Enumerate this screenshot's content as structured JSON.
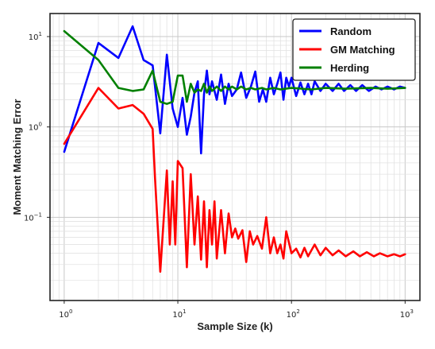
{
  "chart_data": {
    "type": "line",
    "xscale": "log",
    "yscale": "log",
    "xlim": [
      0.75,
      1350
    ],
    "ylim": [
      0.012,
      18
    ],
    "xlabel": "Sample Size (k)",
    "ylabel": "Moment Matching Error",
    "x_tick_values": [
      1,
      10,
      100,
      1000
    ],
    "x_tick_labels": [
      {
        "base": "10",
        "exp": "0"
      },
      {
        "base": "10",
        "exp": "1"
      },
      {
        "base": "10",
        "exp": "2"
      },
      {
        "base": "10",
        "exp": "3"
      }
    ],
    "y_tick_values": [
      0.1,
      1,
      10
    ],
    "y_tick_labels": [
      {
        "base": "10",
        "exp": "−1"
      },
      {
        "base": "10",
        "exp": "0"
      },
      {
        "base": "10",
        "exp": "1"
      }
    ],
    "grid": true,
    "legend_position": "top-right",
    "series": [
      {
        "name": "Random",
        "color": "#0000ff",
        "points": [
          [
            1,
            0.53
          ],
          [
            2,
            8.5
          ],
          [
            3,
            5.8
          ],
          [
            4,
            13.0
          ],
          [
            5,
            5.5
          ],
          [
            6,
            4.8
          ],
          [
            7,
            0.85
          ],
          [
            8,
            6.3
          ],
          [
            9,
            1.6
          ],
          [
            10,
            1.0
          ],
          [
            11,
            2.1
          ],
          [
            12,
            0.82
          ],
          [
            13,
            1.3
          ],
          [
            14,
            2.4
          ],
          [
            15,
            3.2
          ],
          [
            16,
            0.51
          ],
          [
            17,
            2.3
          ],
          [
            18,
            4.2
          ],
          [
            19,
            2.3
          ],
          [
            20,
            3.2
          ],
          [
            22,
            2.0
          ],
          [
            24,
            3.8
          ],
          [
            26,
            1.8
          ],
          [
            28,
            3.0
          ],
          [
            30,
            2.2
          ],
          [
            33,
            2.6
          ],
          [
            36,
            4.0
          ],
          [
            40,
            2.1
          ],
          [
            44,
            2.8
          ],
          [
            48,
            4.1
          ],
          [
            52,
            1.9
          ],
          [
            56,
            2.6
          ],
          [
            60,
            1.9
          ],
          [
            65,
            3.5
          ],
          [
            70,
            2.3
          ],
          [
            75,
            3.0
          ],
          [
            80,
            4.0
          ],
          [
            85,
            2.0
          ],
          [
            90,
            3.5
          ],
          [
            95,
            2.8
          ],
          [
            100,
            3.5
          ],
          [
            110,
            2.2
          ],
          [
            120,
            3.1
          ],
          [
            130,
            2.3
          ],
          [
            140,
            3.0
          ],
          [
            150,
            2.3
          ],
          [
            160,
            3.2
          ],
          [
            180,
            2.5
          ],
          [
            200,
            3.0
          ],
          [
            230,
            2.5
          ],
          [
            260,
            3.0
          ],
          [
            290,
            2.5
          ],
          [
            330,
            2.9
          ],
          [
            370,
            2.5
          ],
          [
            420,
            2.9
          ],
          [
            480,
            2.5
          ],
          [
            550,
            2.8
          ],
          [
            620,
            2.6
          ],
          [
            700,
            2.8
          ],
          [
            800,
            2.6
          ],
          [
            900,
            2.8
          ],
          [
            1000,
            2.7
          ]
        ]
      },
      {
        "name": "GM Matching",
        "color": "#ff0000",
        "points": [
          [
            1,
            0.65
          ],
          [
            2,
            2.7
          ],
          [
            3,
            1.6
          ],
          [
            4,
            1.75
          ],
          [
            5,
            1.4
          ],
          [
            6,
            0.95
          ],
          [
            6.3,
            0.27
          ],
          [
            7,
            0.025
          ],
          [
            8,
            0.33
          ],
          [
            8.5,
            0.05
          ],
          [
            9,
            0.25
          ],
          [
            9.5,
            0.05
          ],
          [
            10,
            0.42
          ],
          [
            11,
            0.35
          ],
          [
            12,
            0.028
          ],
          [
            13,
            0.3
          ],
          [
            14,
            0.05
          ],
          [
            15,
            0.17
          ],
          [
            16,
            0.034
          ],
          [
            17,
            0.15
          ],
          [
            18,
            0.028
          ],
          [
            19,
            0.12
          ],
          [
            20,
            0.05
          ],
          [
            21,
            0.15
          ],
          [
            22,
            0.035
          ],
          [
            24,
            0.12
          ],
          [
            26,
            0.04
          ],
          [
            28,
            0.11
          ],
          [
            30,
            0.06
          ],
          [
            32,
            0.075
          ],
          [
            34,
            0.058
          ],
          [
            37,
            0.072
          ],
          [
            40,
            0.032
          ],
          [
            43,
            0.07
          ],
          [
            46,
            0.05
          ],
          [
            50,
            0.062
          ],
          [
            55,
            0.045
          ],
          [
            60,
            0.1
          ],
          [
            65,
            0.04
          ],
          [
            70,
            0.06
          ],
          [
            75,
            0.04
          ],
          [
            80,
            0.05
          ],
          [
            85,
            0.035
          ],
          [
            90,
            0.07
          ],
          [
            100,
            0.04
          ],
          [
            110,
            0.045
          ],
          [
            120,
            0.036
          ],
          [
            130,
            0.046
          ],
          [
            140,
            0.037
          ],
          [
            160,
            0.05
          ],
          [
            180,
            0.038
          ],
          [
            200,
            0.046
          ],
          [
            230,
            0.038
          ],
          [
            260,
            0.043
          ],
          [
            300,
            0.037
          ],
          [
            350,
            0.042
          ],
          [
            400,
            0.037
          ],
          [
            460,
            0.041
          ],
          [
            530,
            0.037
          ],
          [
            600,
            0.04
          ],
          [
            700,
            0.037
          ],
          [
            800,
            0.039
          ],
          [
            900,
            0.037
          ],
          [
            1000,
            0.039
          ]
        ]
      },
      {
        "name": "Herding",
        "color": "#008000",
        "points": [
          [
            1,
            11.5
          ],
          [
            2,
            5.5
          ],
          [
            3,
            2.7
          ],
          [
            4,
            2.5
          ],
          [
            5,
            2.6
          ],
          [
            6,
            4.2
          ],
          [
            7,
            1.9
          ],
          [
            8,
            1.8
          ],
          [
            9,
            1.9
          ],
          [
            10,
            3.7
          ],
          [
            11,
            3.7
          ],
          [
            12,
            1.9
          ],
          [
            13,
            3.0
          ],
          [
            14,
            2.4
          ],
          [
            15,
            2.6
          ],
          [
            16,
            2.5
          ],
          [
            17,
            3.0
          ],
          [
            18,
            2.4
          ],
          [
            19,
            2.8
          ],
          [
            20,
            2.5
          ],
          [
            22,
            2.8
          ],
          [
            24,
            2.5
          ],
          [
            26,
            2.8
          ],
          [
            28,
            2.6
          ],
          [
            30,
            2.8
          ],
          [
            33,
            2.6
          ],
          [
            36,
            2.8
          ],
          [
            40,
            2.6
          ],
          [
            44,
            2.7
          ],
          [
            48,
            2.6
          ],
          [
            55,
            2.7
          ],
          [
            60,
            2.6
          ],
          [
            70,
            2.7
          ],
          [
            80,
            2.6
          ],
          [
            100,
            2.7
          ],
          [
            150,
            2.6
          ],
          [
            200,
            2.7
          ],
          [
            300,
            2.65
          ],
          [
            500,
            2.7
          ],
          [
            700,
            2.65
          ],
          [
            1000,
            2.7
          ]
        ]
      }
    ]
  }
}
